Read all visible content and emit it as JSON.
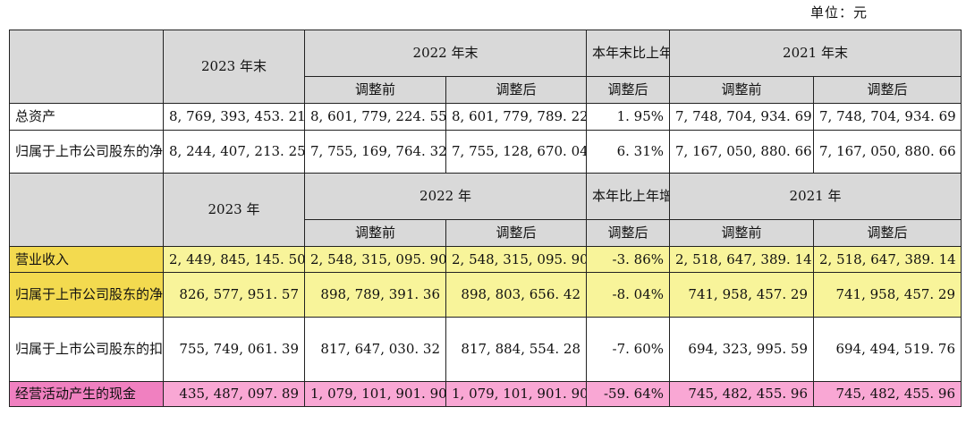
{
  "unit_label": "单位：元",
  "header1": {
    "col_2023": "2023 年末",
    "col_2022": "2022 年末",
    "col_change": "本年末比上年末增减",
    "col_2021": "2021 年末",
    "sub_before": "调整前",
    "sub_after": "调整后",
    "sub_change_after": "调整后"
  },
  "header2": {
    "col_2023": "2023 年",
    "col_2022": "2022 年",
    "col_change": "本年比上年增减",
    "col_2021": "2021 年",
    "sub_before": "调整前",
    "sub_after": "调整后",
    "sub_change_after": "调整后"
  },
  "rows": [
    {
      "label": "总资产",
      "v2023": "8, 769, 393, 453. 21",
      "v2022_before": "8, 601, 779, 224. 55",
      "v2022_after": "8, 601, 779, 789. 22",
      "change": "1. 95%",
      "v2021_before": "7, 748, 704, 934. 69",
      "v2021_after": "7, 748, 704, 934. 69"
    },
    {
      "label": "归属于上市公司股东的净资产",
      "v2023": "8, 244, 407, 213. 25",
      "v2022_before": "7, 755, 169, 764. 32",
      "v2022_after": "7, 755, 128, 670. 04",
      "change": "6. 31%",
      "v2021_before": "7, 167, 050, 880. 66",
      "v2021_after": "7, 167, 050, 880. 66"
    },
    {
      "label": "营业收入",
      "v2023": "2, 449, 845, 145. 50",
      "v2022_before": "2, 548, 315, 095. 90",
      "v2022_after": "2, 548, 315, 095. 90",
      "change": "-3. 86%",
      "v2021_before": "2, 518, 647, 389. 14",
      "v2021_after": "2, 518, 647, 389. 14"
    },
    {
      "label": "归属于上市公司股东的净利润",
      "v2023": "826, 577, 951. 57",
      "v2022_before": "898, 789, 391. 36",
      "v2022_after": "898, 803, 656. 42",
      "change": "-8. 04%",
      "v2021_before": "741, 958, 457. 29",
      "v2021_after": "741, 958, 457. 29"
    },
    {
      "label": "归属于上市公司股东的扣除非经常性损益的净利润",
      "v2023": "755, 749, 061. 39",
      "v2022_before": "817, 647, 030. 32",
      "v2022_after": "817, 884, 554. 28",
      "change": "-7. 60%",
      "v2021_before": "694, 323, 995. 59",
      "v2021_after": "694, 494, 519. 76"
    },
    {
      "label": "经营活动产生的现金",
      "v2023": "435, 487, 097. 89",
      "v2022_before": "1, 079, 101, 901. 90",
      "v2022_after": "1, 079, 101, 901. 90",
      "change": "-59. 64%",
      "v2021_before": "745, 482, 455. 96",
      "v2021_after": "745, 482, 455. 96"
    }
  ],
  "highlight_colors": {
    "yellow": "#f8f49a",
    "yellow_label": "#f3da4f",
    "pink": "#f9a7d4",
    "pink_label": "#f080c0",
    "header_gray": "#d9d9d9"
  }
}
